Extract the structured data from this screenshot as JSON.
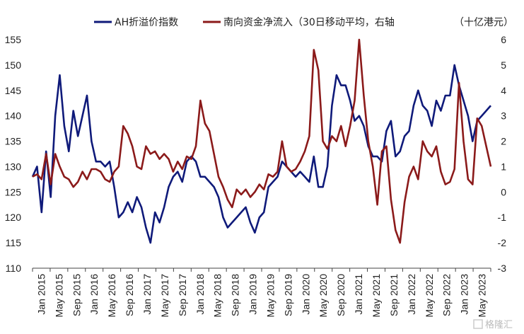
{
  "chart_data": {
    "type": "line",
    "unit_label": "（十亿港元）",
    "watermark": "格隆汇",
    "x_axis": {
      "tick_labels": [
        "Jan 2015",
        "May 2015",
        "Sep 2015",
        "Jan 2016",
        "May 2016",
        "Sep 2016",
        "Jan 2017",
        "May 2017",
        "Sep 2017",
        "Jan 2018",
        "May 2018",
        "Sep 2018",
        "Jan 2019",
        "May 2019",
        "Sep 2019",
        "Jan 2020",
        "May 2020",
        "Sep 2020",
        "Jan 2021",
        "May 2021",
        "Sep 2021",
        "Jan 2022",
        "May 2022",
        "Sep 2022",
        "Jan 2023",
        "May 2023"
      ],
      "range": [
        "2015-01",
        "2023-06"
      ]
    },
    "y_left": {
      "ticks": [
        110,
        115,
        120,
        125,
        130,
        135,
        140,
        145,
        150,
        155
      ],
      "ylim": [
        110,
        155
      ]
    },
    "y_right": {
      "ticks": [
        -3,
        -2,
        -1,
        0,
        1,
        2,
        3,
        4,
        5,
        6
      ],
      "ylim": [
        -3,
        6
      ]
    },
    "series": [
      {
        "name": "AH折溢价指数",
        "axis": "left",
        "color": "#0f1a7a",
        "points": [
          [
            "2015-01",
            128
          ],
          [
            "2015-02",
            130
          ],
          [
            "2015-03",
            121
          ],
          [
            "2015-04",
            133
          ],
          [
            "2015-05",
            124
          ],
          [
            "2015-06",
            140
          ],
          [
            "2015-07",
            148
          ],
          [
            "2015-08",
            138
          ],
          [
            "2015-09",
            133
          ],
          [
            "2015-10",
            141
          ],
          [
            "2015-11",
            136
          ],
          [
            "2015-12",
            140
          ],
          [
            "2016-01",
            144
          ],
          [
            "2016-02",
            135
          ],
          [
            "2016-03",
            131
          ],
          [
            "2016-04",
            131
          ],
          [
            "2016-05",
            130
          ],
          [
            "2016-06",
            131
          ],
          [
            "2016-07",
            126
          ],
          [
            "2016-08",
            120
          ],
          [
            "2016-09",
            121
          ],
          [
            "2016-10",
            123
          ],
          [
            "2016-11",
            121
          ],
          [
            "2016-12",
            124
          ],
          [
            "2017-01",
            122
          ],
          [
            "2017-02",
            118
          ],
          [
            "2017-03",
            115
          ],
          [
            "2017-04",
            121
          ],
          [
            "2017-05",
            119
          ],
          [
            "2017-06",
            122
          ],
          [
            "2017-07",
            126
          ],
          [
            "2017-08",
            128
          ],
          [
            "2017-09",
            129
          ],
          [
            "2017-10",
            127
          ],
          [
            "2017-11",
            131
          ],
          [
            "2017-12",
            132
          ],
          [
            "2018-01",
            131
          ],
          [
            "2018-02",
            128
          ],
          [
            "2018-03",
            128
          ],
          [
            "2018-04",
            127
          ],
          [
            "2018-05",
            126
          ],
          [
            "2018-06",
            124
          ],
          [
            "2018-07",
            120
          ],
          [
            "2018-08",
            118
          ],
          [
            "2018-09",
            119
          ],
          [
            "2018-10",
            120
          ],
          [
            "2018-11",
            121
          ],
          [
            "2018-12",
            122
          ],
          [
            "2019-01",
            119
          ],
          [
            "2019-02",
            117
          ],
          [
            "2019-03",
            120
          ],
          [
            "2019-04",
            121
          ],
          [
            "2019-05",
            126
          ],
          [
            "2019-06",
            127
          ],
          [
            "2019-07",
            128
          ],
          [
            "2019-08",
            131
          ],
          [
            "2019-09",
            130
          ],
          [
            "2019-10",
            129
          ],
          [
            "2019-11",
            128
          ],
          [
            "2019-12",
            129
          ],
          [
            "2020-01",
            128
          ],
          [
            "2020-02",
            127
          ],
          [
            "2020-03",
            132
          ],
          [
            "2020-04",
            126
          ],
          [
            "2020-05",
            126
          ],
          [
            "2020-06",
            130
          ],
          [
            "2020-07",
            142
          ],
          [
            "2020-08",
            148
          ],
          [
            "2020-09",
            146
          ],
          [
            "2020-10",
            146
          ],
          [
            "2020-11",
            143
          ],
          [
            "2020-12",
            139
          ],
          [
            "2021-01",
            140
          ],
          [
            "2021-02",
            138
          ],
          [
            "2021-03",
            134
          ],
          [
            "2021-04",
            132
          ],
          [
            "2021-05",
            132
          ],
          [
            "2021-06",
            131
          ],
          [
            "2021-07",
            137
          ],
          [
            "2021-08",
            139
          ],
          [
            "2021-09",
            132
          ],
          [
            "2021-10",
            133
          ],
          [
            "2021-11",
            136
          ],
          [
            "2021-12",
            137
          ],
          [
            "2022-01",
            142
          ],
          [
            "2022-02",
            145
          ],
          [
            "2022-03",
            142
          ],
          [
            "2022-04",
            141
          ],
          [
            "2022-05",
            138
          ],
          [
            "2022-06",
            143
          ],
          [
            "2022-07",
            141
          ],
          [
            "2022-08",
            144
          ],
          [
            "2022-09",
            144
          ],
          [
            "2022-10",
            150
          ],
          [
            "2022-11",
            146
          ],
          [
            "2022-12",
            143
          ],
          [
            "2023-01",
            140
          ],
          [
            "2023-02",
            135
          ],
          [
            "2023-03",
            139
          ],
          [
            "2023-04",
            140
          ],
          [
            "2023-05",
            141
          ],
          [
            "2023-06",
            142
          ]
        ]
      },
      {
        "name": "南向资金净流入（30日移动平均，右轴",
        "axis": "right",
        "color": "#8b1a1a",
        "points": [
          [
            "2015-01",
            0.6
          ],
          [
            "2015-02",
            0.7
          ],
          [
            "2015-03",
            0.5
          ],
          [
            "2015-04",
            1.5
          ],
          [
            "2015-05",
            0.3
          ],
          [
            "2015-06",
            1.5
          ],
          [
            "2015-07",
            1.0
          ],
          [
            "2015-08",
            0.6
          ],
          [
            "2015-09",
            0.5
          ],
          [
            "2015-10",
            0.2
          ],
          [
            "2015-11",
            0.4
          ],
          [
            "2015-12",
            0.8
          ],
          [
            "2016-01",
            0.5
          ],
          [
            "2016-02",
            0.9
          ],
          [
            "2016-03",
            0.9
          ],
          [
            "2016-04",
            0.8
          ],
          [
            "2016-05",
            0.5
          ],
          [
            "2016-06",
            0.4
          ],
          [
            "2016-07",
            0.8
          ],
          [
            "2016-08",
            1.0
          ],
          [
            "2016-09",
            2.6
          ],
          [
            "2016-10",
            2.3
          ],
          [
            "2016-11",
            1.8
          ],
          [
            "2016-12",
            1.0
          ],
          [
            "2017-01",
            0.9
          ],
          [
            "2017-02",
            1.8
          ],
          [
            "2017-03",
            1.5
          ],
          [
            "2017-04",
            1.6
          ],
          [
            "2017-05",
            1.3
          ],
          [
            "2017-06",
            1.5
          ],
          [
            "2017-07",
            1.3
          ],
          [
            "2017-08",
            0.8
          ],
          [
            "2017-09",
            1.2
          ],
          [
            "2017-10",
            0.9
          ],
          [
            "2017-11",
            1.4
          ],
          [
            "2017-12",
            1.3
          ],
          [
            "2018-01",
            1.8
          ],
          [
            "2018-02",
            3.6
          ],
          [
            "2018-03",
            2.7
          ],
          [
            "2018-04",
            2.4
          ],
          [
            "2018-05",
            1.5
          ],
          [
            "2018-06",
            0.6
          ],
          [
            "2018-07",
            0.2
          ],
          [
            "2018-08",
            -0.3
          ],
          [
            "2018-09",
            -0.6
          ],
          [
            "2018-10",
            0.1
          ],
          [
            "2018-11",
            -0.1
          ],
          [
            "2018-12",
            0.1
          ],
          [
            "2019-01",
            -0.2
          ],
          [
            "2019-02",
            0.0
          ],
          [
            "2019-03",
            0.3
          ],
          [
            "2019-04",
            0.1
          ],
          [
            "2019-05",
            0.7
          ],
          [
            "2019-06",
            0.6
          ],
          [
            "2019-07",
            0.8
          ],
          [
            "2019-08",
            2.0
          ],
          [
            "2019-09",
            1.0
          ],
          [
            "2019-10",
            0.8
          ],
          [
            "2019-11",
            0.9
          ],
          [
            "2019-12",
            1.2
          ],
          [
            "2020-01",
            1.6
          ],
          [
            "2020-02",
            2.2
          ],
          [
            "2020-03",
            5.6
          ],
          [
            "2020-04",
            4.8
          ],
          [
            "2020-05",
            2.0
          ],
          [
            "2020-06",
            1.7
          ],
          [
            "2020-07",
            2.2
          ],
          [
            "2020-08",
            2.0
          ],
          [
            "2020-09",
            2.6
          ],
          [
            "2020-10",
            1.8
          ],
          [
            "2020-11",
            2.6
          ],
          [
            "2020-12",
            3.6
          ],
          [
            "2021-01",
            6.0
          ],
          [
            "2021-02",
            3.8
          ],
          [
            "2021-03",
            2.0
          ],
          [
            "2021-04",
            1.0
          ],
          [
            "2021-05",
            -0.5
          ],
          [
            "2021-06",
            1.6
          ],
          [
            "2021-07",
            1.8
          ],
          [
            "2021-08",
            -0.3
          ],
          [
            "2021-09",
            -1.5
          ],
          [
            "2021-10",
            -2.0
          ],
          [
            "2021-11",
            -0.4
          ],
          [
            "2021-12",
            0.6
          ],
          [
            "2022-01",
            1.0
          ],
          [
            "2022-02",
            0.5
          ],
          [
            "2022-03",
            2.0
          ],
          [
            "2022-04",
            1.6
          ],
          [
            "2022-05",
            1.4
          ],
          [
            "2022-06",
            1.8
          ],
          [
            "2022-07",
            0.8
          ],
          [
            "2022-08",
            0.3
          ],
          [
            "2022-09",
            0.4
          ],
          [
            "2022-10",
            0.9
          ],
          [
            "2022-11",
            4.3
          ],
          [
            "2022-12",
            2.0
          ],
          [
            "2023-01",
            0.5
          ],
          [
            "2023-02",
            0.3
          ],
          [
            "2023-03",
            2.9
          ],
          [
            "2023-04",
            2.6
          ],
          [
            "2023-05",
            1.8
          ],
          [
            "2023-06",
            1.0
          ]
        ]
      }
    ]
  }
}
